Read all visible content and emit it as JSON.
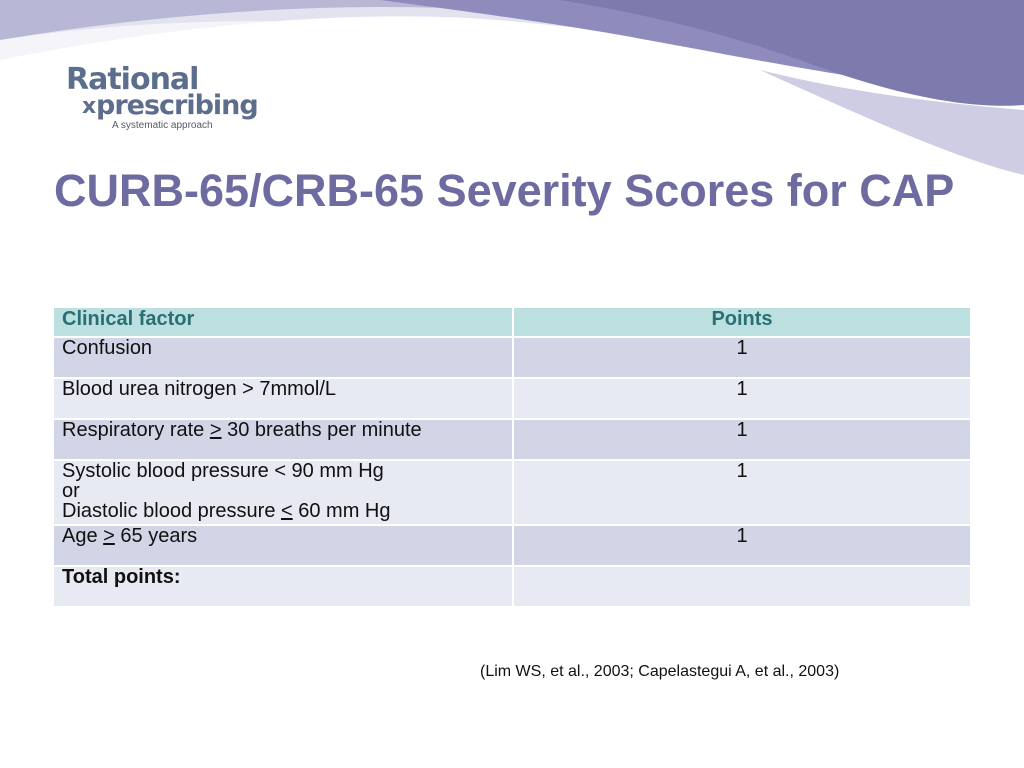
{
  "logo": {
    "line1": "Rational",
    "line2": "prescribing",
    "rx": "x",
    "tagline": "A systematic approach"
  },
  "title": "CURB-65/CRB-65 Severity Scores for CAP",
  "table": {
    "headers": [
      "Clinical factor",
      "Points"
    ],
    "rows": [
      {
        "pre": "Confusion",
        "sym": "",
        "post": "",
        "points": "1"
      },
      {
        "pre": "Blood urea nitrogen > 7mmol/L",
        "sym": "",
        "post": "",
        "points": "1"
      },
      {
        "pre": "Respiratory rate ",
        "sym": ">",
        "post": " 30 breaths per minute",
        "points": "1"
      },
      {
        "line1": "Systolic blood pressure < 90 mm Hg",
        "line2": "or",
        "line3_pre": "Diastolic blood pressure ",
        "line3_sym": "<",
        "line3_post": " 60 mm Hg",
        "points": "1"
      },
      {
        "pre": "Age ",
        "sym": ">",
        "post": " 65 years",
        "points": "1"
      }
    ],
    "total_label": "Total points:",
    "total_value": ""
  },
  "citation": "(Lim WS, et al., 2003; Capelastegui A, et al., 2003)",
  "colors": {
    "title": "#6e6ba0",
    "header_bg": "#bcdfdf",
    "row_dark": "#d1d5e6",
    "row_light": "#e7e9f3",
    "wave": "#7d7aae"
  }
}
